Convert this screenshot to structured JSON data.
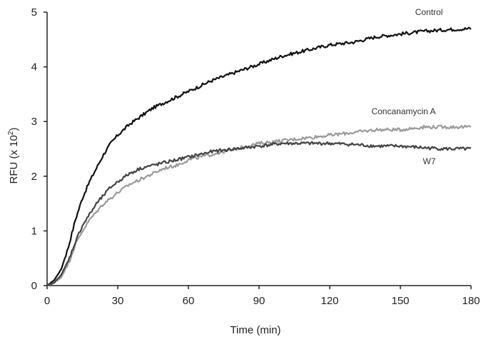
{
  "chart_data": {
    "type": "line",
    "title": "",
    "xlabel": "Time (min)",
    "ylabel_main": "RFU (x 10",
    "ylabel_exp": "2",
    "ylabel_close": ")",
    "xlim": [
      0,
      180
    ],
    "ylim": [
      0,
      5
    ],
    "xticks": [
      0,
      30,
      60,
      90,
      120,
      150,
      180
    ],
    "yticks": [
      0,
      1,
      2,
      3,
      4,
      5
    ],
    "grid": false,
    "legend": "inline labels",
    "series": [
      {
        "name": "Control",
        "color": "#111111",
        "x": [
          0,
          3,
          6,
          9,
          12,
          15,
          18,
          21,
          24,
          27,
          30,
          35,
          40,
          45,
          50,
          55,
          60,
          70,
          80,
          90,
          100,
          110,
          120,
          130,
          140,
          150,
          160,
          170,
          180
        ],
        "y": [
          0,
          0.1,
          0.3,
          0.7,
          1.2,
          1.6,
          1.9,
          2.15,
          2.4,
          2.6,
          2.75,
          2.95,
          3.1,
          3.25,
          3.35,
          3.45,
          3.55,
          3.75,
          3.9,
          4.05,
          4.2,
          4.3,
          4.4,
          4.45,
          4.55,
          4.6,
          4.65,
          4.68,
          4.7
        ]
      },
      {
        "name": "Concanamycin A",
        "color": "#9a9a9a",
        "x": [
          0,
          3,
          6,
          9,
          12,
          15,
          18,
          21,
          24,
          27,
          30,
          35,
          40,
          45,
          50,
          55,
          60,
          70,
          80,
          90,
          100,
          110,
          120,
          130,
          140,
          150,
          160,
          170,
          180
        ],
        "y": [
          0,
          0.05,
          0.15,
          0.4,
          0.75,
          1.0,
          1.2,
          1.35,
          1.5,
          1.6,
          1.7,
          1.85,
          1.95,
          2.05,
          2.15,
          2.2,
          2.3,
          2.4,
          2.5,
          2.6,
          2.65,
          2.7,
          2.75,
          2.8,
          2.85,
          2.85,
          2.9,
          2.9,
          2.9
        ]
      },
      {
        "name": "W7",
        "color": "#444444",
        "x": [
          0,
          3,
          6,
          9,
          12,
          15,
          18,
          21,
          24,
          27,
          30,
          35,
          40,
          45,
          50,
          55,
          60,
          70,
          80,
          90,
          100,
          110,
          120,
          130,
          140,
          150,
          160,
          170,
          180
        ],
        "y": [
          0,
          0.05,
          0.2,
          0.45,
          0.8,
          1.1,
          1.3,
          1.5,
          1.65,
          1.8,
          1.9,
          2.05,
          2.15,
          2.2,
          2.25,
          2.3,
          2.35,
          2.45,
          2.5,
          2.55,
          2.6,
          2.6,
          2.6,
          2.58,
          2.55,
          2.55,
          2.52,
          2.5,
          2.5
        ]
      }
    ]
  }
}
